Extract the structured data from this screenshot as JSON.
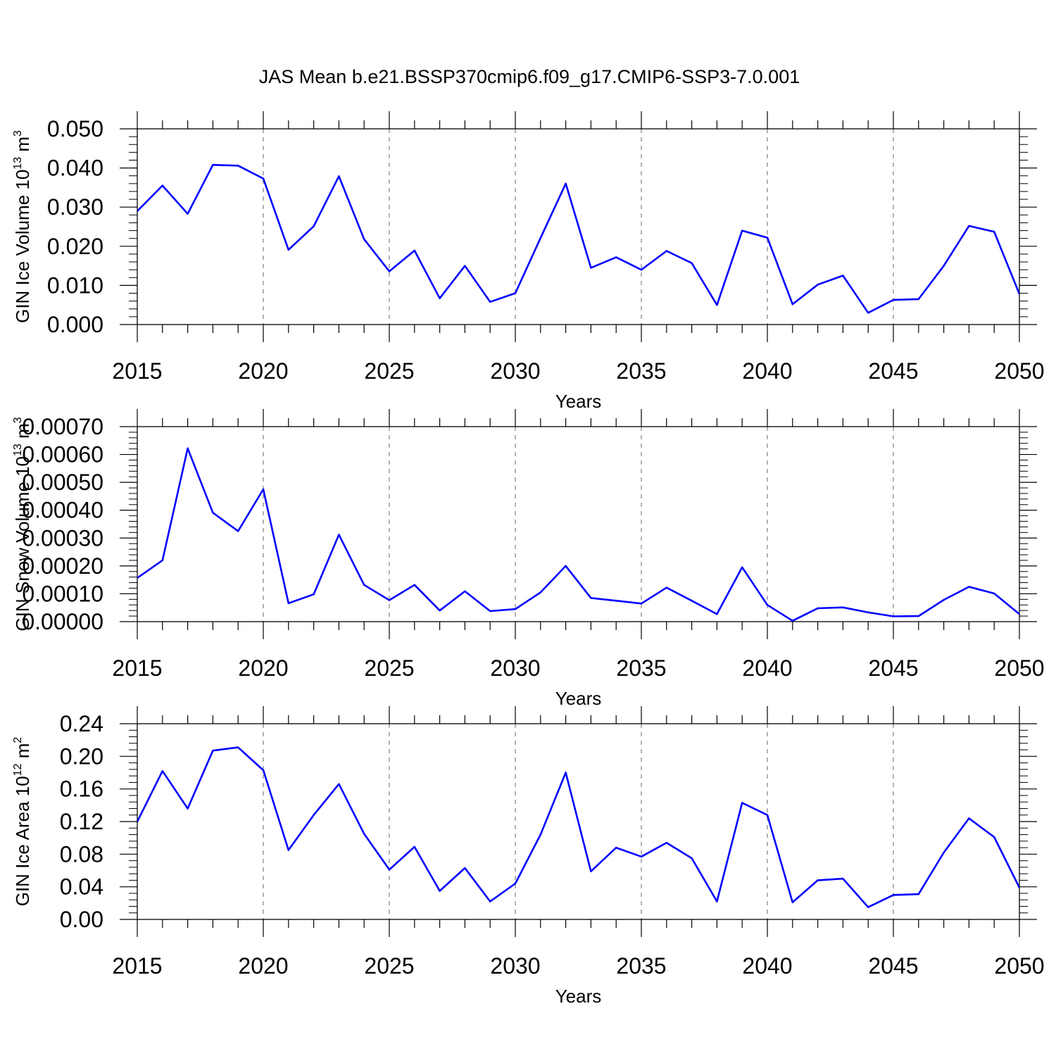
{
  "title": "JAS Mean b.e21.BSSP370cmip6.f09_g17.CMIP6-SSP3-7.0.001",
  "colors": {
    "line": "#0000ff",
    "axis": "#000000",
    "grid": "#999999"
  },
  "chart_data": [
    {
      "type": "line",
      "name": "ice-volume",
      "xlabel": "Years",
      "ylabel_main": "GIN Ice Volume 10",
      "ylabel_exp": "13",
      "ylabel_unit": " m",
      "ylabel_unit_exp": "3",
      "xlim": [
        2015,
        2050
      ],
      "ylim": [
        0,
        0.05
      ],
      "xticks": [
        "2015",
        "2020",
        "2025",
        "2030",
        "2035",
        "2040",
        "2045",
        "2050"
      ],
      "yticks": [
        "0.000",
        "0.010",
        "0.020",
        "0.030",
        "0.040",
        "0.050"
      ],
      "x": [
        2015,
        2016,
        2017,
        2018,
        2019,
        2020,
        2021,
        2022,
        2023,
        2024,
        2025,
        2026,
        2027,
        2028,
        2029,
        2030,
        2031,
        2032,
        2033,
        2034,
        2035,
        2036,
        2037,
        2038,
        2039,
        2040,
        2041,
        2042,
        2043,
        2044,
        2045,
        2046,
        2047,
        2048,
        2049,
        2050
      ],
      "values": [
        0.029,
        0.0355,
        0.0283,
        0.0408,
        0.0406,
        0.0373,
        0.0191,
        0.0251,
        0.0379,
        0.0218,
        0.0136,
        0.0189,
        0.0067,
        0.015,
        0.0058,
        0.008,
        0.0221,
        0.036,
        0.0145,
        0.0172,
        0.014,
        0.0188,
        0.0157,
        0.005,
        0.024,
        0.0222,
        0.0052,
        0.0102,
        0.0125,
        0.003,
        0.0063,
        0.0065,
        0.015,
        0.0252,
        0.0237,
        0.0078
      ]
    },
    {
      "type": "line",
      "name": "snow-volume",
      "xlabel": "Years",
      "ylabel_main": "GIN Snow Volume 10",
      "ylabel_exp": "13",
      "ylabel_unit": " m",
      "ylabel_unit_exp": "3",
      "xlim": [
        2015,
        2050
      ],
      "ylim": [
        0,
        0.0007
      ],
      "xticks": [
        "2015",
        "2020",
        "2025",
        "2030",
        "2035",
        "2040",
        "2045",
        "2050"
      ],
      "yticks": [
        "0.00000",
        "0.00010",
        "0.00020",
        "0.00030",
        "0.00040",
        "0.00050",
        "0.00060",
        "0.00070"
      ],
      "x": [
        2015,
        2016,
        2017,
        2018,
        2019,
        2020,
        2021,
        2022,
        2023,
        2024,
        2025,
        2026,
        2027,
        2028,
        2029,
        2030,
        2031,
        2032,
        2033,
        2034,
        2035,
        2036,
        2037,
        2038,
        2039,
        2040,
        2041,
        2042,
        2043,
        2044,
        2045,
        2046,
        2047,
        2048,
        2049,
        2050
      ],
      "values": [
        0.000157,
        0.00022,
        0.000622,
        0.000391,
        0.000325,
        0.000475,
        6.6e-05,
        9.8e-05,
        0.000312,
        0.000132,
        7.7e-05,
        0.000132,
        4e-05,
        0.000109,
        3.8e-05,
        4.5e-05,
        0.000105,
        0.0002,
        8.5e-05,
        7.5e-05,
        6.5e-05,
        0.000122,
        7.5e-05,
        2.7e-05,
        0.000195,
        6e-05,
        3e-06,
        4.8e-05,
        5.1e-05,
        3.3e-05,
        1.9e-05,
        2e-05,
        7.8e-05,
        0.000125,
        0.000101,
        2.7e-05
      ]
    },
    {
      "type": "line",
      "name": "ice-area",
      "xlabel": "Years",
      "ylabel_main": "GIN Ice Area 10",
      "ylabel_exp": "12",
      "ylabel_unit": " m",
      "ylabel_unit_exp": "2",
      "xlim": [
        2015,
        2050
      ],
      "ylim": [
        0,
        0.24
      ],
      "xticks": [
        "2015",
        "2020",
        "2025",
        "2030",
        "2035",
        "2040",
        "2045",
        "2050"
      ],
      "yticks": [
        "0.00",
        "0.04",
        "0.08",
        "0.12",
        "0.16",
        "0.20",
        "0.24"
      ],
      "x": [
        2015,
        2016,
        2017,
        2018,
        2019,
        2020,
        2021,
        2022,
        2023,
        2024,
        2025,
        2026,
        2027,
        2028,
        2029,
        2030,
        2031,
        2032,
        2033,
        2034,
        2035,
        2036,
        2037,
        2038,
        2039,
        2040,
        2041,
        2042,
        2043,
        2044,
        2045,
        2046,
        2047,
        2048,
        2049,
        2050
      ],
      "values": [
        0.12,
        0.182,
        0.136,
        0.207,
        0.211,
        0.183,
        0.085,
        0.128,
        0.166,
        0.105,
        0.061,
        0.089,
        0.035,
        0.063,
        0.022,
        0.044,
        0.104,
        0.18,
        0.059,
        0.088,
        0.077,
        0.094,
        0.075,
        0.022,
        0.143,
        0.128,
        0.021,
        0.048,
        0.05,
        0.015,
        0.03,
        0.031,
        0.082,
        0.124,
        0.101,
        0.039
      ]
    }
  ]
}
